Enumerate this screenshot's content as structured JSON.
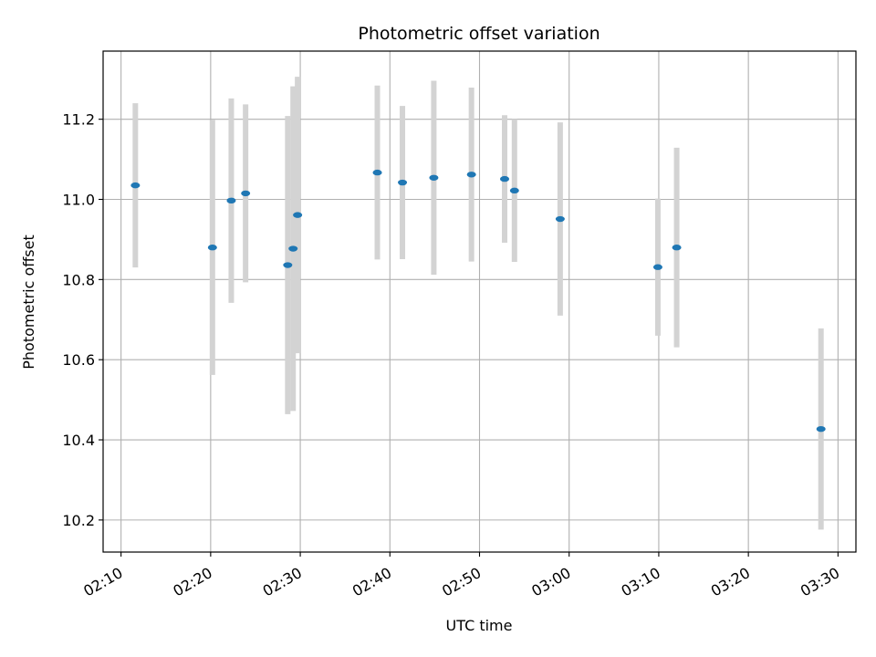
{
  "chart_data": {
    "type": "scatter",
    "title": "Photometric offset variation",
    "xlabel": "UTC time",
    "ylabel": "Photometric offset",
    "grid": true,
    "xlim": [
      "02:08:00",
      "03:32:00"
    ],
    "ylim": [
      10.12,
      11.37
    ],
    "x_ticks": [
      "02:10",
      "02:20",
      "02:30",
      "02:40",
      "02:50",
      "03:00",
      "03:10",
      "03:20",
      "03:30"
    ],
    "y_ticks": [
      "10.2",
      "10.4",
      "10.6",
      "10.8",
      "11.0",
      "11.2"
    ],
    "colors": {
      "points": "#1f77b4",
      "errorbars": "#d3d3d3",
      "grid": "#b0b0b0"
    },
    "series": [
      {
        "points": [
          {
            "x": "02:11:36",
            "y": 11.035,
            "err": 0.205
          },
          {
            "x": "02:20:12",
            "y": 10.88,
            "err": 0.318
          },
          {
            "x": "02:22:18",
            "y": 10.997,
            "err": 0.255
          },
          {
            "x": "02:23:54",
            "y": 11.015,
            "err": 0.222
          },
          {
            "x": "02:28:36",
            "y": 10.836,
            "err": 0.372
          },
          {
            "x": "02:29:12",
            "y": 10.877,
            "err": 0.405
          },
          {
            "x": "02:29:42",
            "y": 10.961,
            "err": 0.345
          },
          {
            "x": "02:38:36",
            "y": 11.067,
            "err": 0.217
          },
          {
            "x": "02:41:24",
            "y": 11.042,
            "err": 0.191
          },
          {
            "x": "02:44:54",
            "y": 11.054,
            "err": 0.242
          },
          {
            "x": "02:49:06",
            "y": 11.062,
            "err": 0.217
          },
          {
            "x": "02:52:48",
            "y": 11.051,
            "err": 0.159
          },
          {
            "x": "02:53:54",
            "y": 11.022,
            "err": 0.178
          },
          {
            "x": "02:59:00",
            "y": 10.951,
            "err": 0.241
          },
          {
            "x": "03:09:54",
            "y": 10.831,
            "err": 0.171
          },
          {
            "x": "03:12:00",
            "y": 10.88,
            "err": 0.249
          },
          {
            "x": "03:28:06",
            "y": 10.427,
            "err": 0.251
          }
        ]
      }
    ]
  }
}
